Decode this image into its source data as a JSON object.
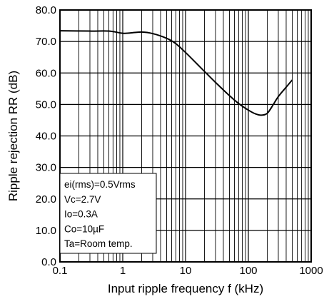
{
  "chart_data": {
    "type": "line",
    "xlabel": "Input ripple frequency f (kHz)",
    "ylabel": "Ripple rejection RR (dB)",
    "xscale": "log",
    "xlim": [
      0.1,
      1000
    ],
    "ylim": [
      0,
      80
    ],
    "grid": true,
    "x_ticks": [
      {
        "value": 0.1,
        "label": "0.1"
      },
      {
        "value": 1,
        "label": "1"
      },
      {
        "value": 10,
        "label": "10"
      },
      {
        "value": 100,
        "label": "100"
      },
      {
        "value": 1000,
        "label": "1000"
      }
    ],
    "y_ticks": [
      {
        "value": 0,
        "label": "0.0"
      },
      {
        "value": 10,
        "label": "10.0"
      },
      {
        "value": 20,
        "label": "20.0"
      },
      {
        "value": 30,
        "label": "30.0"
      },
      {
        "value": 40,
        "label": "40.0"
      },
      {
        "value": 50,
        "label": "50.0"
      },
      {
        "value": 60,
        "label": "60.0"
      },
      {
        "value": 70,
        "label": "70.0"
      },
      {
        "value": 80,
        "label": "80.0"
      }
    ],
    "conditions": [
      "ei(rms)=0.5Vrms",
      "Vc=2.7V",
      "Io=0.3A",
      "Co=10µF",
      "Ta=Room temp."
    ],
    "series": [
      {
        "x": [
          0.1,
          0.3,
          0.6,
          1.0,
          1.3,
          2.0,
          3.0,
          5.0,
          7.0,
          10,
          15,
          20,
          30,
          50,
          70,
          100,
          130,
          160,
          200,
          250,
          300,
          400,
          500
        ],
        "y": [
          73.4,
          73.3,
          73.3,
          72.6,
          72.7,
          73.0,
          72.5,
          71.0,
          69.3,
          66.5,
          63.0,
          60.5,
          57.0,
          52.8,
          50.3,
          48.2,
          47.0,
          46.6,
          47.2,
          50.0,
          52.5,
          55.5,
          57.8
        ]
      }
    ]
  }
}
